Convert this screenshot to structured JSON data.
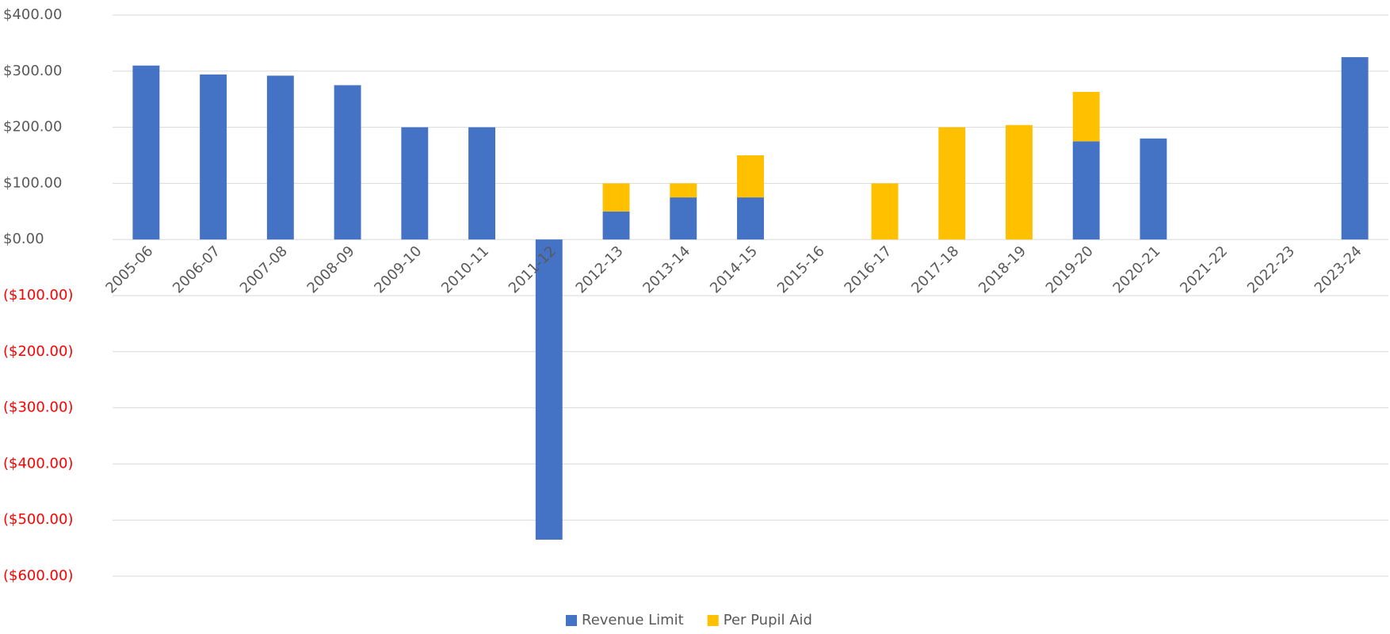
{
  "chart_data": {
    "type": "stacked_bar",
    "categories": [
      "2005-06",
      "2006-07",
      "2007-08",
      "2008-09",
      "2009-10",
      "2010-11",
      "2011-12",
      "2012-13",
      "2013-14",
      "2014-15",
      "2015-16",
      "2016-17",
      "2017-18",
      "2018-19",
      "2019-20",
      "2020-21",
      "2021-22",
      "2022-23",
      "2023-24"
    ],
    "series": [
      {
        "name": "Revenue Limit",
        "color": "#4472c4",
        "values": [
          310,
          294,
          292,
          275,
          200,
          200,
          -535,
          50,
          75,
          75,
          null,
          null,
          null,
          null,
          175,
          180,
          null,
          null,
          325
        ]
      },
      {
        "name": "Per Pupil Aid",
        "color": "#ffc000",
        "values": [
          null,
          null,
          null,
          null,
          null,
          null,
          null,
          50,
          25,
          75,
          null,
          100,
          200,
          204,
          88,
          null,
          null,
          null,
          null
        ]
      }
    ],
    "ylim": [
      -600,
      400
    ],
    "yticks": [
      {
        "value": 400,
        "label": "$400.00"
      },
      {
        "value": 300,
        "label": "$300.00"
      },
      {
        "value": 200,
        "label": "$200.00"
      },
      {
        "value": 100,
        "label": "$100.00"
      },
      {
        "value": 0,
        "label": "$0.00"
      },
      {
        "value": -100,
        "label": "($100.00)"
      },
      {
        "value": -200,
        "label": "($200.00)"
      },
      {
        "value": -300,
        "label": "($300.00)"
      },
      {
        "value": -400,
        "label": "($400.00)"
      },
      {
        "value": -500,
        "label": "($500.00)"
      },
      {
        "value": -600,
        "label": "($600.00)"
      }
    ],
    "negative_label_color": "#ff0000",
    "grid": true,
    "legend": "bottom"
  }
}
